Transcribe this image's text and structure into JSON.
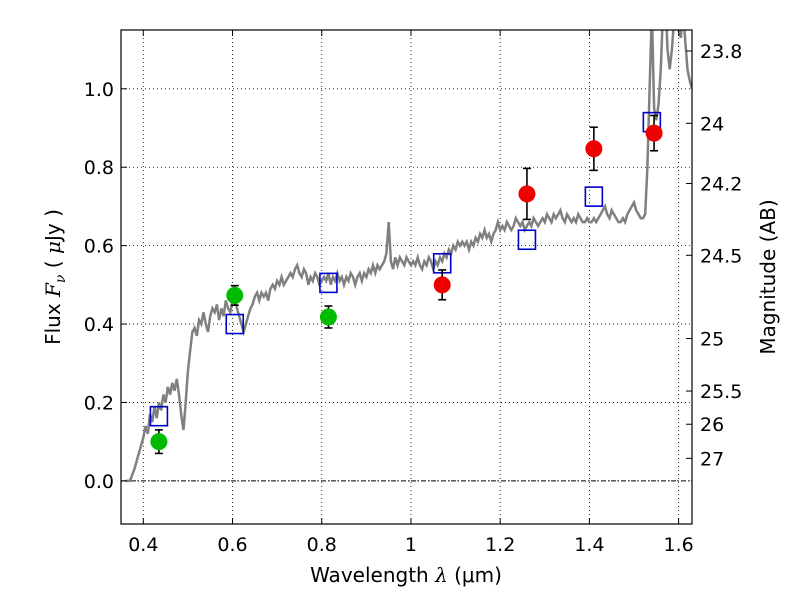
{
  "chart_data": {
    "type": "scatter",
    "xlabel": "Wavelength  λ (μm)",
    "ylabel": "Flux  F_ν  ( μJy )",
    "ylabel_parts": {
      "prefix": "Flux  ",
      "var": "F",
      "sub": "ν",
      "mid": "  ( ",
      "unit_mu": "μ",
      "unit": "Jy )"
    },
    "xlabel_parts": {
      "prefix": "Wavelength  ",
      "var": "λ",
      "unit": " (μm)"
    },
    "y2label": "Magnitude (AB)",
    "xlim": [
      0.35,
      1.63
    ],
    "ylim": [
      -0.11,
      1.15
    ],
    "grid": true,
    "x_ticks": [
      {
        "value": 0.4,
        "label": "0.4"
      },
      {
        "value": 0.6,
        "label": "0.6"
      },
      {
        "value": 0.8,
        "label": "0.8"
      },
      {
        "value": 1.0,
        "label": "1"
      },
      {
        "value": 1.2,
        "label": "1.2"
      },
      {
        "value": 1.4,
        "label": "1.4"
      },
      {
        "value": 1.6,
        "label": "1.6"
      }
    ],
    "y_ticks": [
      {
        "value": 0.0,
        "label": "0.0"
      },
      {
        "value": 0.2,
        "label": "0.2"
      },
      {
        "value": 0.4,
        "label": "0.4"
      },
      {
        "value": 0.6,
        "label": "0.6"
      },
      {
        "value": 0.8,
        "label": "0.8"
      },
      {
        "value": 1.0,
        "label": "1.0"
      }
    ],
    "y2_ticks": [
      {
        "label": "23.8",
        "flux": 1.0965
      },
      {
        "label": "24",
        "flux": 0.912
      },
      {
        "label": "24.2",
        "flux": 0.7586
      },
      {
        "label": "24.5",
        "flux": 0.5754
      },
      {
        "label": "25",
        "flux": 0.3631
      },
      {
        "label": "25.5",
        "flux": 0.2291
      },
      {
        "label": "26",
        "flux": 0.1445
      },
      {
        "label": "27",
        "flux": 0.0575
      }
    ],
    "series": [
      {
        "name": "template spectrum",
        "kind": "line",
        "color": "#808080",
        "points": [
          [
            0.36,
            0.0
          ],
          [
            0.37,
            0.0
          ],
          [
            0.38,
            0.03
          ],
          [
            0.39,
            0.07
          ],
          [
            0.4,
            0.11
          ],
          [
            0.405,
            0.14
          ],
          [
            0.41,
            0.12
          ],
          [
            0.415,
            0.17
          ],
          [
            0.42,
            0.15
          ],
          [
            0.425,
            0.19
          ],
          [
            0.43,
            0.16
          ],
          [
            0.435,
            0.2
          ],
          [
            0.44,
            0.18
          ],
          [
            0.445,
            0.22
          ],
          [
            0.45,
            0.2
          ],
          [
            0.455,
            0.24
          ],
          [
            0.46,
            0.22
          ],
          [
            0.465,
            0.25
          ],
          [
            0.47,
            0.23
          ],
          [
            0.475,
            0.26
          ],
          [
            0.48,
            0.22
          ],
          [
            0.485,
            0.17
          ],
          [
            0.49,
            0.13
          ],
          [
            0.495,
            0.2
          ],
          [
            0.5,
            0.28
          ],
          [
            0.505,
            0.33
          ],
          [
            0.51,
            0.38
          ],
          [
            0.515,
            0.39
          ],
          [
            0.52,
            0.37
          ],
          [
            0.525,
            0.41
          ],
          [
            0.53,
            0.4
          ],
          [
            0.535,
            0.43
          ],
          [
            0.54,
            0.4
          ],
          [
            0.545,
            0.38
          ],
          [
            0.55,
            0.42
          ],
          [
            0.555,
            0.44
          ],
          [
            0.56,
            0.43
          ],
          [
            0.565,
            0.45
          ],
          [
            0.57,
            0.41
          ],
          [
            0.575,
            0.44
          ],
          [
            0.58,
            0.42
          ],
          [
            0.585,
            0.46
          ],
          [
            0.59,
            0.44
          ],
          [
            0.595,
            0.43
          ],
          [
            0.6,
            0.46
          ],
          [
            0.605,
            0.47
          ],
          [
            0.61,
            0.44
          ],
          [
            0.615,
            0.42
          ],
          [
            0.62,
            0.4
          ],
          [
            0.625,
            0.38
          ],
          [
            0.63,
            0.4
          ],
          [
            0.635,
            0.42
          ],
          [
            0.64,
            0.44
          ],
          [
            0.645,
            0.45
          ],
          [
            0.65,
            0.47
          ],
          [
            0.655,
            0.48
          ],
          [
            0.66,
            0.46
          ],
          [
            0.665,
            0.48
          ],
          [
            0.67,
            0.47
          ],
          [
            0.675,
            0.48
          ],
          [
            0.68,
            0.46
          ],
          [
            0.685,
            0.49
          ],
          [
            0.69,
            0.5
          ],
          [
            0.695,
            0.49
          ],
          [
            0.7,
            0.51
          ],
          [
            0.705,
            0.5
          ],
          [
            0.71,
            0.52
          ],
          [
            0.715,
            0.5
          ],
          [
            0.72,
            0.51
          ],
          [
            0.725,
            0.52
          ],
          [
            0.73,
            0.53
          ],
          [
            0.735,
            0.52
          ],
          [
            0.74,
            0.54
          ],
          [
            0.745,
            0.55
          ],
          [
            0.75,
            0.53
          ],
          [
            0.755,
            0.52
          ],
          [
            0.76,
            0.54
          ],
          [
            0.765,
            0.53
          ],
          [
            0.77,
            0.5
          ],
          [
            0.775,
            0.52
          ],
          [
            0.78,
            0.51
          ],
          [
            0.785,
            0.53
          ],
          [
            0.79,
            0.52
          ],
          [
            0.795,
            0.5
          ],
          [
            0.8,
            0.51
          ],
          [
            0.805,
            0.52
          ],
          [
            0.81,
            0.51
          ],
          [
            0.815,
            0.53
          ],
          [
            0.82,
            0.5
          ],
          [
            0.825,
            0.52
          ],
          [
            0.83,
            0.51
          ],
          [
            0.835,
            0.53
          ],
          [
            0.84,
            0.51
          ],
          [
            0.845,
            0.52
          ],
          [
            0.85,
            0.5
          ],
          [
            0.855,
            0.52
          ],
          [
            0.86,
            0.51
          ],
          [
            0.865,
            0.53
          ],
          [
            0.87,
            0.52
          ],
          [
            0.875,
            0.5
          ],
          [
            0.88,
            0.52
          ],
          [
            0.885,
            0.53
          ],
          [
            0.89,
            0.51
          ],
          [
            0.895,
            0.53
          ],
          [
            0.9,
            0.52
          ],
          [
            0.905,
            0.54
          ],
          [
            0.91,
            0.53
          ],
          [
            0.915,
            0.55
          ],
          [
            0.92,
            0.53
          ],
          [
            0.925,
            0.55
          ],
          [
            0.93,
            0.54
          ],
          [
            0.935,
            0.55
          ],
          [
            0.94,
            0.56
          ],
          [
            0.945,
            0.58
          ],
          [
            0.95,
            0.66
          ],
          [
            0.955,
            0.56
          ],
          [
            0.96,
            0.54
          ],
          [
            0.965,
            0.57
          ],
          [
            0.97,
            0.55
          ],
          [
            0.975,
            0.57
          ],
          [
            0.98,
            0.56
          ],
          [
            0.985,
            0.55
          ],
          [
            0.99,
            0.57
          ],
          [
            0.995,
            0.56
          ],
          [
            1.0,
            0.55
          ],
          [
            1.005,
            0.56
          ],
          [
            1.01,
            0.55
          ],
          [
            1.015,
            0.57
          ],
          [
            1.02,
            0.55
          ],
          [
            1.025,
            0.54
          ],
          [
            1.03,
            0.56
          ],
          [
            1.035,
            0.55
          ],
          [
            1.04,
            0.57
          ],
          [
            1.045,
            0.56
          ],
          [
            1.05,
            0.54
          ],
          [
            1.055,
            0.56
          ],
          [
            1.06,
            0.55
          ],
          [
            1.065,
            0.57
          ],
          [
            1.07,
            0.56
          ],
          [
            1.075,
            0.58
          ],
          [
            1.08,
            0.57
          ],
          [
            1.085,
            0.59
          ],
          [
            1.09,
            0.58
          ],
          [
            1.095,
            0.6
          ],
          [
            1.1,
            0.59
          ],
          [
            1.105,
            0.61
          ],
          [
            1.11,
            0.6
          ],
          [
            1.115,
            0.61
          ],
          [
            1.12,
            0.6
          ],
          [
            1.125,
            0.61
          ],
          [
            1.13,
            0.59
          ],
          [
            1.135,
            0.61
          ],
          [
            1.14,
            0.6
          ],
          [
            1.145,
            0.62
          ],
          [
            1.15,
            0.61
          ],
          [
            1.155,
            0.63
          ],
          [
            1.16,
            0.62
          ],
          [
            1.165,
            0.64
          ],
          [
            1.17,
            0.62
          ],
          [
            1.175,
            0.63
          ],
          [
            1.18,
            0.61
          ],
          [
            1.185,
            0.63
          ],
          [
            1.19,
            0.64
          ],
          [
            1.195,
            0.66
          ],
          [
            1.2,
            0.64
          ],
          [
            1.205,
            0.65
          ],
          [
            1.21,
            0.64
          ],
          [
            1.215,
            0.66
          ],
          [
            1.22,
            0.65
          ],
          [
            1.225,
            0.64
          ],
          [
            1.23,
            0.65
          ],
          [
            1.235,
            0.67
          ],
          [
            1.24,
            0.66
          ],
          [
            1.245,
            0.65
          ],
          [
            1.25,
            0.66
          ],
          [
            1.255,
            0.64
          ],
          [
            1.26,
            0.65
          ],
          [
            1.265,
            0.66
          ],
          [
            1.27,
            0.65
          ],
          [
            1.275,
            0.67
          ],
          [
            1.28,
            0.66
          ],
          [
            1.285,
            0.65
          ],
          [
            1.29,
            0.66
          ],
          [
            1.295,
            0.67
          ],
          [
            1.3,
            0.66
          ],
          [
            1.305,
            0.68
          ],
          [
            1.31,
            0.67
          ],
          [
            1.315,
            0.66
          ],
          [
            1.32,
            0.68
          ],
          [
            1.325,
            0.67
          ],
          [
            1.33,
            0.68
          ],
          [
            1.335,
            0.69
          ],
          [
            1.34,
            0.67
          ],
          [
            1.345,
            0.66
          ],
          [
            1.35,
            0.68
          ],
          [
            1.355,
            0.67
          ],
          [
            1.36,
            0.66
          ],
          [
            1.365,
            0.67
          ],
          [
            1.37,
            0.66
          ],
          [
            1.375,
            0.68
          ],
          [
            1.38,
            0.67
          ],
          [
            1.385,
            0.66
          ],
          [
            1.39,
            0.66
          ],
          [
            1.395,
            0.67
          ],
          [
            1.4,
            0.66
          ],
          [
            1.405,
            0.66
          ],
          [
            1.41,
            0.67
          ],
          [
            1.415,
            0.66
          ],
          [
            1.42,
            0.67
          ],
          [
            1.425,
            0.68
          ],
          [
            1.43,
            0.69
          ],
          [
            1.435,
            0.7
          ],
          [
            1.44,
            0.68
          ],
          [
            1.445,
            0.67
          ],
          [
            1.45,
            0.69
          ],
          [
            1.455,
            0.68
          ],
          [
            1.46,
            0.67
          ],
          [
            1.465,
            0.66
          ],
          [
            1.47,
            0.66
          ],
          [
            1.475,
            0.67
          ],
          [
            1.48,
            0.66
          ],
          [
            1.485,
            0.68
          ],
          [
            1.49,
            0.69
          ],
          [
            1.495,
            0.7
          ],
          [
            1.5,
            0.71
          ],
          [
            1.505,
            0.69
          ],
          [
            1.51,
            0.68
          ],
          [
            1.515,
            0.67
          ],
          [
            1.52,
            0.67
          ],
          [
            1.525,
            0.68
          ],
          [
            1.53,
            0.8
          ],
          [
            1.535,
            1.0
          ],
          [
            1.54,
            1.2
          ],
          [
            1.545,
            0.95
          ],
          [
            1.55,
            0.92
          ],
          [
            1.555,
            0.96
          ],
          [
            1.56,
            1.05
          ],
          [
            1.565,
            1.2
          ],
          [
            1.57,
            1.25
          ],
          [
            1.575,
            1.1
          ],
          [
            1.58,
            1.05
          ],
          [
            1.585,
            1.1
          ],
          [
            1.59,
            1.18
          ],
          [
            1.595,
            1.25
          ],
          [
            1.6,
            1.15
          ],
          [
            1.605,
            1.13
          ],
          [
            1.61,
            1.2
          ],
          [
            1.615,
            1.12
          ],
          [
            1.62,
            1.05
          ],
          [
            1.625,
            1.02
          ],
          [
            1.63,
            1.0
          ]
        ]
      },
      {
        "name": "model photometry",
        "kind": "open_square",
        "color": "#0000cc",
        "points": [
          [
            0.435,
            0.165
          ],
          [
            0.605,
            0.4
          ],
          [
            0.815,
            0.505
          ],
          [
            1.07,
            0.555
          ],
          [
            1.26,
            0.615
          ],
          [
            1.41,
            0.725
          ],
          [
            1.54,
            0.915
          ]
        ]
      },
      {
        "name": "observed (green)",
        "kind": "filled_circle",
        "color": "#00bb00",
        "points": [
          {
            "x": 0.435,
            "y": 0.1,
            "err": 0.03
          },
          {
            "x": 0.605,
            "y": 0.473,
            "err": 0.025
          },
          {
            "x": 0.815,
            "y": 0.418,
            "err": 0.028
          }
        ]
      },
      {
        "name": "observed (red)",
        "kind": "filled_circle",
        "color": "#ee0000",
        "points": [
          {
            "x": 1.07,
            "y": 0.5,
            "err": 0.038
          },
          {
            "x": 1.26,
            "y": 0.732,
            "err": 0.065
          },
          {
            "x": 1.41,
            "y": 0.847,
            "err": 0.055
          },
          {
            "x": 1.545,
            "y": 0.887,
            "err": 0.045
          }
        ]
      }
    ]
  }
}
